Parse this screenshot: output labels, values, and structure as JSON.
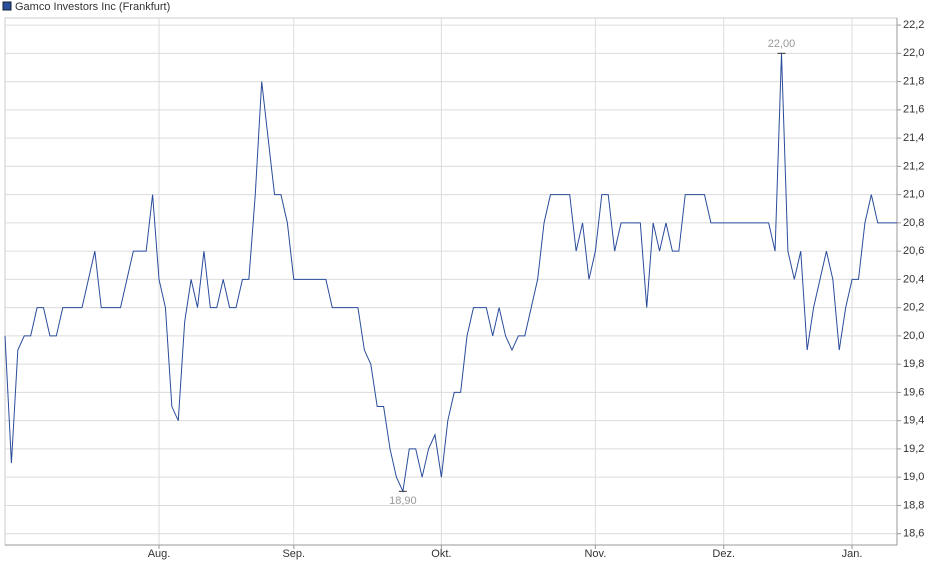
{
  "chart_data": {
    "type": "line",
    "series": [
      {
        "name": "Gamco Investors Inc (Frankfurt)",
        "color": "#2a4c9c",
        "values": [
          20.0,
          19.1,
          19.9,
          20.0,
          20.0,
          20.2,
          20.2,
          20.0,
          20.0,
          20.2,
          20.2,
          20.2,
          20.2,
          20.4,
          20.6,
          20.2,
          20.2,
          20.2,
          20.2,
          20.4,
          20.6,
          20.6,
          20.6,
          21.0,
          20.4,
          20.2,
          19.5,
          19.4,
          20.1,
          20.4,
          20.2,
          20.6,
          20.2,
          20.2,
          20.4,
          20.2,
          20.2,
          20.4,
          20.4,
          21.0,
          21.8,
          21.4,
          21.0,
          21.0,
          20.8,
          20.4,
          20.4,
          20.4,
          20.4,
          20.4,
          20.4,
          20.2,
          20.2,
          20.2,
          20.2,
          20.2,
          19.9,
          19.8,
          19.5,
          19.5,
          19.2,
          19.0,
          18.9,
          19.2,
          19.2,
          19.0,
          19.2,
          19.3,
          19.0,
          19.4,
          19.6,
          19.6,
          20.0,
          20.2,
          20.2,
          20.2,
          20.0,
          20.2,
          20.0,
          19.9,
          20.0,
          20.0,
          20.2,
          20.4,
          20.8,
          21.0,
          21.0,
          21.0,
          21.0,
          20.6,
          20.8,
          20.4,
          20.6,
          21.0,
          21.0,
          20.6,
          20.8,
          20.8,
          20.8,
          20.8,
          20.2,
          20.8,
          20.6,
          20.8,
          20.6,
          20.6,
          21.0,
          21.0,
          21.0,
          21.0,
          20.8,
          20.8,
          20.8,
          20.8,
          20.8,
          20.8,
          20.8,
          20.8,
          20.8,
          20.8,
          20.6,
          22.0,
          20.6,
          20.4,
          20.6,
          19.9,
          20.2,
          20.4,
          20.6,
          20.4,
          19.9,
          20.2,
          20.4,
          20.4,
          20.8,
          21.0,
          20.8,
          20.8,
          20.8,
          20.8
        ]
      }
    ],
    "xlim": [
      0,
      139
    ],
    "xticks": [
      {
        "value": 24,
        "label": "Aug."
      },
      {
        "value": 45,
        "label": "Sep."
      },
      {
        "value": 68,
        "label": "Okt."
      },
      {
        "value": 92,
        "label": "Nov."
      },
      {
        "value": 112,
        "label": "Dez."
      },
      {
        "value": 132,
        "label": "Jan."
      }
    ],
    "ylim": [
      18.52,
      22.25
    ],
    "yticks": [
      {
        "value": 18.6,
        "label": "18,6"
      },
      {
        "value": 18.8,
        "label": "18,8"
      },
      {
        "value": 19.0,
        "label": "19,0"
      },
      {
        "value": 19.2,
        "label": "19,2"
      },
      {
        "value": 19.4,
        "label": "19,4"
      },
      {
        "value": 19.6,
        "label": "19,6"
      },
      {
        "value": 19.8,
        "label": "19,8"
      },
      {
        "value": 20.0,
        "label": "20,0"
      },
      {
        "value": 20.2,
        "label": "20,2"
      },
      {
        "value": 20.4,
        "label": "20,4"
      },
      {
        "value": 20.6,
        "label": "20,6"
      },
      {
        "value": 20.8,
        "label": "20,8"
      },
      {
        "value": 21.0,
        "label": "21,0"
      },
      {
        "value": 21.2,
        "label": "21,2"
      },
      {
        "value": 21.4,
        "label": "21,4"
      },
      {
        "value": 21.6,
        "label": "21,6"
      },
      {
        "value": 21.8,
        "label": "21,8"
      },
      {
        "value": 22.0,
        "label": "22,0"
      },
      {
        "value": 22.2,
        "label": "22,2"
      }
    ],
    "annotations": [
      {
        "x": 121,
        "value": 22.0,
        "label": "22,00",
        "side": "above"
      },
      {
        "x": 62,
        "value": 18.9,
        "label": "18,90",
        "side": "below"
      }
    ],
    "grid": true
  }
}
